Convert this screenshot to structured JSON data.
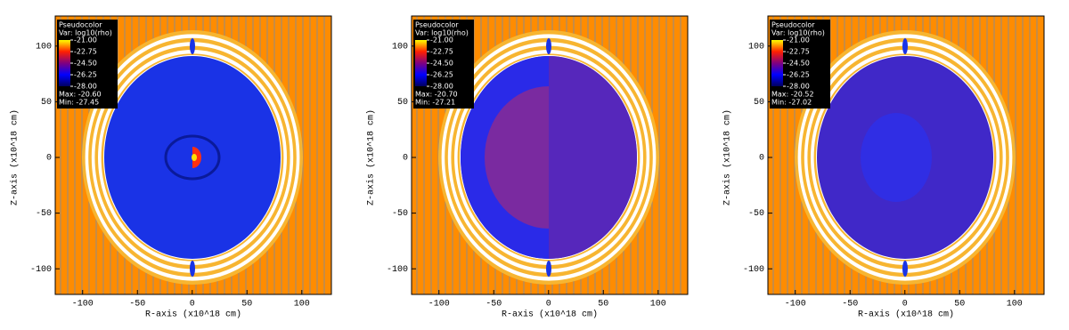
{
  "chart_data": [
    {
      "type": "pseudocolor",
      "legend_title": "Pseudocolor",
      "variable": "Var: log10(rho)",
      "xlabel": "R-axis (x10^18 cm)",
      "ylabel": "Z-axis (x10^18 cm)",
      "xlim": [
        -125,
        127
      ],
      "ylim": [
        -123,
        127
      ],
      "xticks": [
        -100,
        -50,
        0,
        50,
        100
      ],
      "yticks": [
        -100,
        -50,
        0,
        50,
        100
      ],
      "clim": [
        -28,
        -21
      ],
      "cticks": [
        {
          "value": -21,
          "label": "-21.00"
        },
        {
          "value": -22.75,
          "label": "-22.75"
        },
        {
          "value": -24.5,
          "label": "-24.50"
        },
        {
          "value": -26.25,
          "label": "-26.25"
        },
        {
          "value": -28,
          "label": "-28.00"
        }
      ],
      "max_label": "Max: -20.60",
      "min_label": "Min: -27.45"
    },
    {
      "type": "pseudocolor",
      "legend_title": "Pseudocolor",
      "variable": "Var: log10(rho)",
      "xlabel": "R-axis (x10^18 cm)",
      "ylabel": "Z-axis (x10^18 cm)",
      "xlim": [
        -125,
        127
      ],
      "ylim": [
        -123,
        127
      ],
      "xticks": [
        -100,
        -50,
        0,
        50,
        100
      ],
      "yticks": [
        -100,
        -50,
        0,
        50,
        100
      ],
      "clim": [
        -28,
        -21
      ],
      "cticks": [
        {
          "value": -21,
          "label": "-21.00"
        },
        {
          "value": -22.75,
          "label": "-22.75"
        },
        {
          "value": -24.5,
          "label": "-24.50"
        },
        {
          "value": -26.25,
          "label": "-26.25"
        },
        {
          "value": -28,
          "label": "-28.00"
        }
      ],
      "max_label": "Max: -20.70",
      "min_label": "Min: -27.21"
    },
    {
      "type": "pseudocolor",
      "legend_title": "Pseudocolor",
      "variable": "Var: log10(rho)",
      "xlabel": "R-axis (x10^18 cm)",
      "ylabel": "Z-axis (x10^18 cm)",
      "xlim": [
        -125,
        127
      ],
      "ylim": [
        -123,
        127
      ],
      "xticks": [
        -100,
        -50,
        0,
        50,
        100
      ],
      "yticks": [
        -100,
        -50,
        0,
        50,
        100
      ],
      "clim": [
        -28,
        -21
      ],
      "cticks": [
        {
          "value": -21,
          "label": "-21.00"
        },
        {
          "value": -22.75,
          "label": "-22.75"
        },
        {
          "value": -24.5,
          "label": "-24.50"
        },
        {
          "value": -26.25,
          "label": "-26.25"
        },
        {
          "value": -28,
          "label": "-28.00"
        }
      ],
      "max_label": "Max: -20.52",
      "min_label": "Min: -27.02"
    }
  ]
}
